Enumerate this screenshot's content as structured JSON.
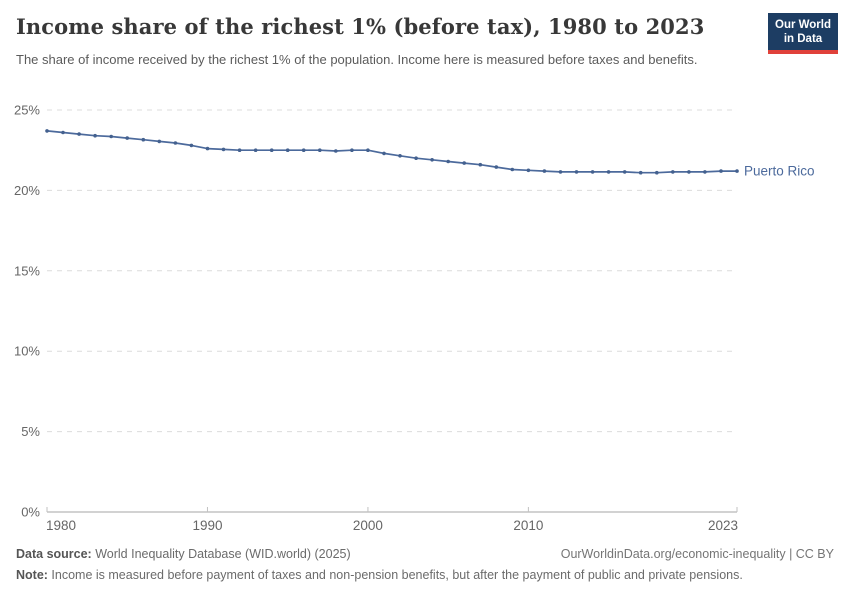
{
  "header": {
    "title": "Income share of the richest 1% (before tax), 1980 to 2023",
    "subtitle": "The share of income received by the richest 1% of the population. Income here is measured before taxes and benefits."
  },
  "logo": {
    "line1": "Our World",
    "line2": "in Data",
    "bg_color": "#1d3d63",
    "accent_color": "#e0413a"
  },
  "footer": {
    "source_label": "Data source:",
    "source_text": " World Inequality Database (WID.world) (2025)",
    "link_text": "OurWorldinData.org/economic-inequality | CC BY",
    "note_label": "Note:",
    "note_text": " Income is measured before payment of taxes and non-pension benefits, but after the payment of public and private pensions."
  },
  "colors": {
    "line": "#4c6a9c",
    "point": "#44618f",
    "grid": "#dcdcdc",
    "axis": "#a5a5a5",
    "tick": "#c2c2c2",
    "tick_label": "#666666",
    "entity_label": "#4c6a9c"
  },
  "chart_data": {
    "type": "line",
    "title": "Income share of the richest 1% (before tax), 1980 to 2023",
    "xlabel": "",
    "ylabel": "",
    "xlim": [
      1980,
      2023
    ],
    "ylim": [
      0,
      25
    ],
    "xticks": [
      1980,
      1990,
      2000,
      2010,
      2023
    ],
    "yticks": [
      0,
      5,
      10,
      15,
      20,
      25
    ],
    "ytick_suffix": "%",
    "grid": "horizontal-dashed",
    "legend_position": "line-end-label",
    "series": [
      {
        "name": "Puerto Rico",
        "color": "#4c6a9c",
        "x": [
          1980,
          1981,
          1982,
          1983,
          1984,
          1985,
          1986,
          1987,
          1988,
          1989,
          1990,
          1991,
          1992,
          1993,
          1994,
          1995,
          1996,
          1997,
          1998,
          1999,
          2000,
          2001,
          2002,
          2003,
          2004,
          2005,
          2006,
          2007,
          2008,
          2009,
          2010,
          2011,
          2012,
          2013,
          2014,
          2015,
          2016,
          2017,
          2018,
          2019,
          2020,
          2021,
          2022,
          2023
        ],
        "values": [
          23.7,
          23.6,
          23.5,
          23.4,
          23.35,
          23.25,
          23.15,
          23.05,
          22.95,
          22.8,
          22.6,
          22.55,
          22.5,
          22.5,
          22.5,
          22.5,
          22.5,
          22.5,
          22.45,
          22.5,
          22.5,
          22.3,
          22.15,
          22.0,
          21.9,
          21.8,
          21.7,
          21.6,
          21.45,
          21.3,
          21.25,
          21.2,
          21.15,
          21.15,
          21.15,
          21.15,
          21.15,
          21.1,
          21.1,
          21.15,
          21.15,
          21.15,
          21.2,
          21.2
        ]
      }
    ]
  }
}
